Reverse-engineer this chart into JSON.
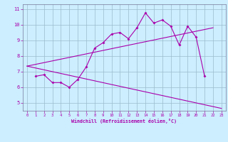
{
  "background_color": "#cceeff",
  "line_color": "#aa00aa",
  "grid_color": "#99bbcc",
  "xlabel": "Windchill (Refroidissement éolien,°C)",
  "ylim": [
    4.5,
    11.3
  ],
  "xlim": [
    -0.5,
    23.5
  ],
  "yticks": [
    5,
    6,
    7,
    8,
    9,
    10,
    11
  ],
  "xticks": [
    0,
    1,
    2,
    3,
    4,
    5,
    6,
    7,
    8,
    9,
    10,
    11,
    12,
    13,
    14,
    15,
    16,
    17,
    18,
    19,
    20,
    21,
    22,
    23
  ],
  "y_wavy": [
    null,
    6.7,
    6.8,
    6.3,
    6.3,
    6.0,
    6.5,
    7.3,
    8.5,
    8.85,
    9.4,
    9.5,
    9.1,
    9.8,
    10.75,
    10.1,
    10.3,
    9.9,
    8.7,
    9.9,
    9.2,
    6.7,
    null,
    null
  ],
  "y_upper": [
    7.35,
    null,
    null,
    null,
    null,
    null,
    null,
    null,
    null,
    null,
    null,
    null,
    null,
    null,
    null,
    null,
    null,
    null,
    null,
    null,
    null,
    null,
    9.8,
    null
  ],
  "y_lower": [
    7.35,
    null,
    null,
    null,
    null,
    null,
    null,
    null,
    null,
    null,
    null,
    null,
    null,
    null,
    null,
    null,
    null,
    null,
    null,
    null,
    null,
    null,
    null,
    4.65
  ],
  "x_upper_start": 0,
  "x_upper_end": 22,
  "y_upper_start": 7.35,
  "y_upper_end": 9.8,
  "x_lower_start": 0,
  "x_lower_end": 23,
  "y_lower_start": 7.35,
  "y_lower_end": 4.65
}
